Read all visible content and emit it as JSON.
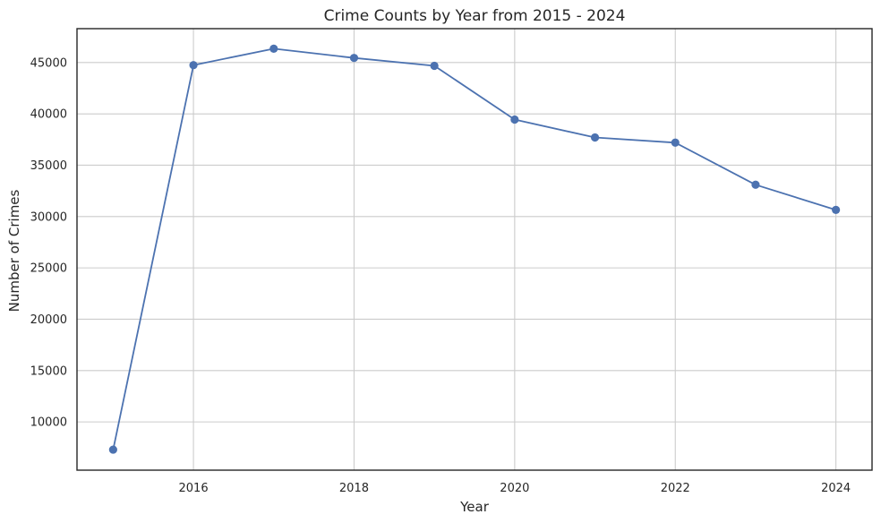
{
  "chart_data": {
    "type": "line",
    "title": "Crime Counts by Year from 2015 - 2024",
    "xlabel": "Year",
    "ylabel": "Number of Crimes",
    "x": [
      2015,
      2016,
      2017,
      2018,
      2019,
      2020,
      2021,
      2022,
      2023,
      2024
    ],
    "series": [
      {
        "values": [
          7300,
          44750,
          46350,
          45450,
          44680,
          39450,
          37700,
          37200,
          33100,
          30650
        ],
        "color": "#4c72b0",
        "marker": "circle"
      }
    ],
    "xlim": [
      2014.55,
      2024.45
    ],
    "ylim": [
      5300,
      48300
    ],
    "xticks": [
      2016,
      2018,
      2020,
      2022,
      2024
    ],
    "yticks": [
      10000,
      15000,
      20000,
      25000,
      30000,
      35000,
      40000,
      45000
    ],
    "grid": true,
    "legend": "none"
  }
}
